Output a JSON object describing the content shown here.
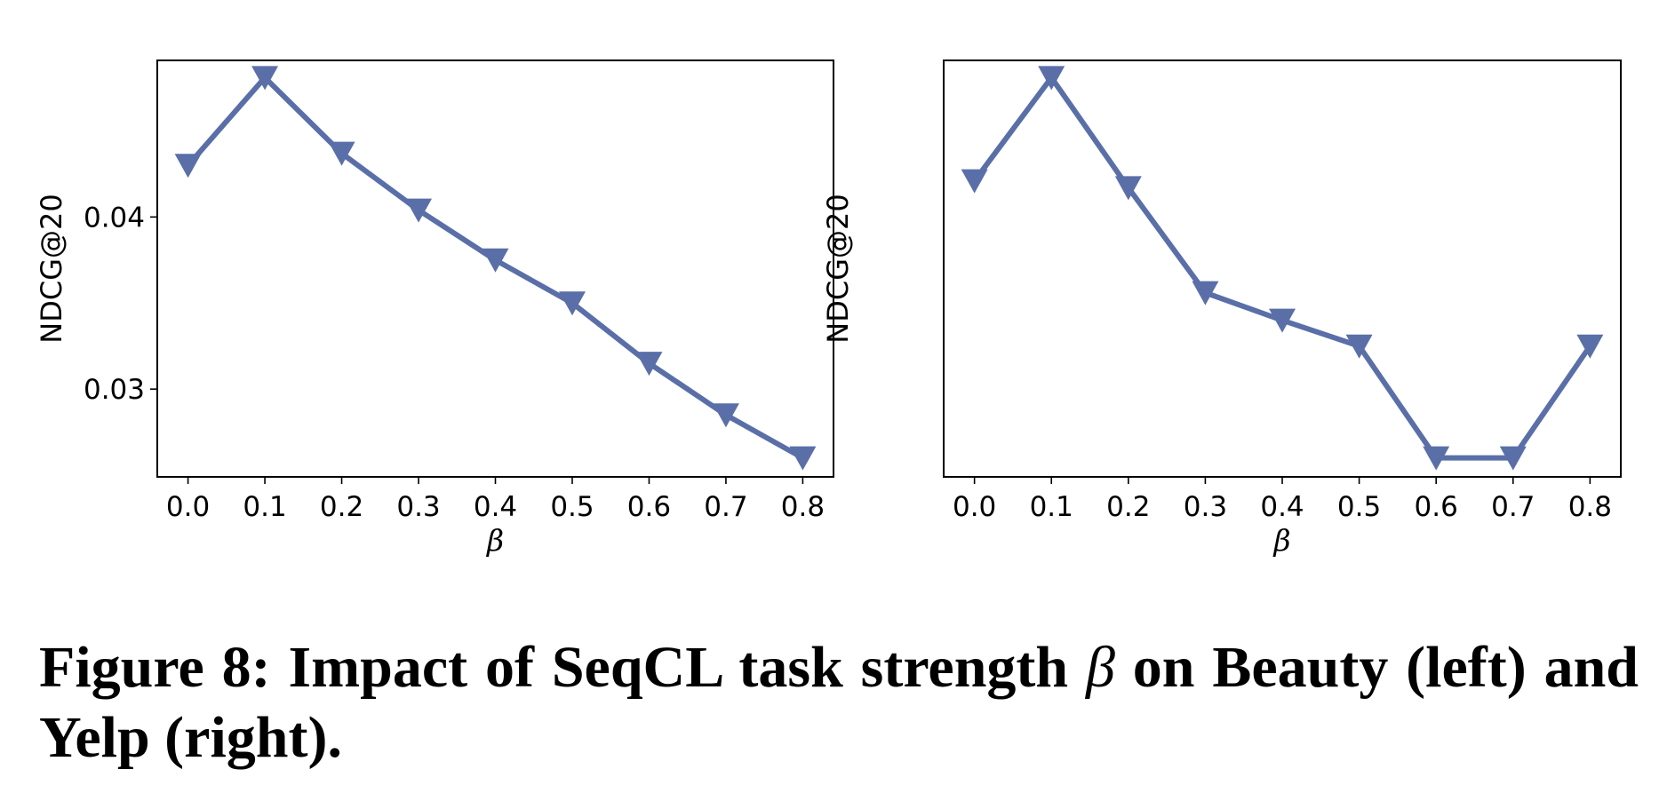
{
  "chart_data": [
    {
      "type": "line",
      "name": "Beauty",
      "x": [
        0.0,
        0.1,
        0.2,
        0.3,
        0.4,
        0.5,
        0.6,
        0.7,
        0.8
      ],
      "values": [
        0.043,
        0.0481,
        0.0437,
        0.0404,
        0.0375,
        0.035,
        0.0315,
        0.0285,
        0.026
      ],
      "xticks": [
        "0.0",
        "0.1",
        "0.2",
        "0.3",
        "0.4",
        "0.5",
        "0.6",
        "0.7",
        "0.8"
      ],
      "yticks": [
        {
          "value": 0.03,
          "label": "0.03"
        },
        {
          "value": 0.04,
          "label": "0.04"
        }
      ],
      "xlabel": "β",
      "ylabel": "NDCG@20",
      "xlim": [
        -0.04,
        0.84
      ],
      "ylim": [
        0.0249,
        0.0491
      ],
      "marker": "triangle-down",
      "color": "#5a6fa8"
    },
    {
      "type": "line",
      "name": "Yelp",
      "x": [
        0.0,
        0.1,
        0.2,
        0.3,
        0.4,
        0.5,
        0.6,
        0.7,
        0.8
      ],
      "values": [
        0.0421,
        0.0481,
        0.0417,
        0.0356,
        0.034,
        0.0325,
        0.026,
        0.026,
        0.0325
      ],
      "xticks": [
        "0.0",
        "0.1",
        "0.2",
        "0.3",
        "0.4",
        "0.5",
        "0.6",
        "0.7",
        "0.8"
      ],
      "yticks": [],
      "xlabel": "β",
      "ylabel": "NDCG@20",
      "xlim": [
        -0.04,
        0.84
      ],
      "ylim": [
        0.0249,
        0.0491
      ],
      "marker": "triangle-down",
      "color": "#5a6fa8"
    }
  ],
  "caption": {
    "text_before": "Figure 8: Impact of SeqCL task strength ",
    "symbol": "β",
    "text_after": " on Beauty (left) and Yelp (right)."
  }
}
